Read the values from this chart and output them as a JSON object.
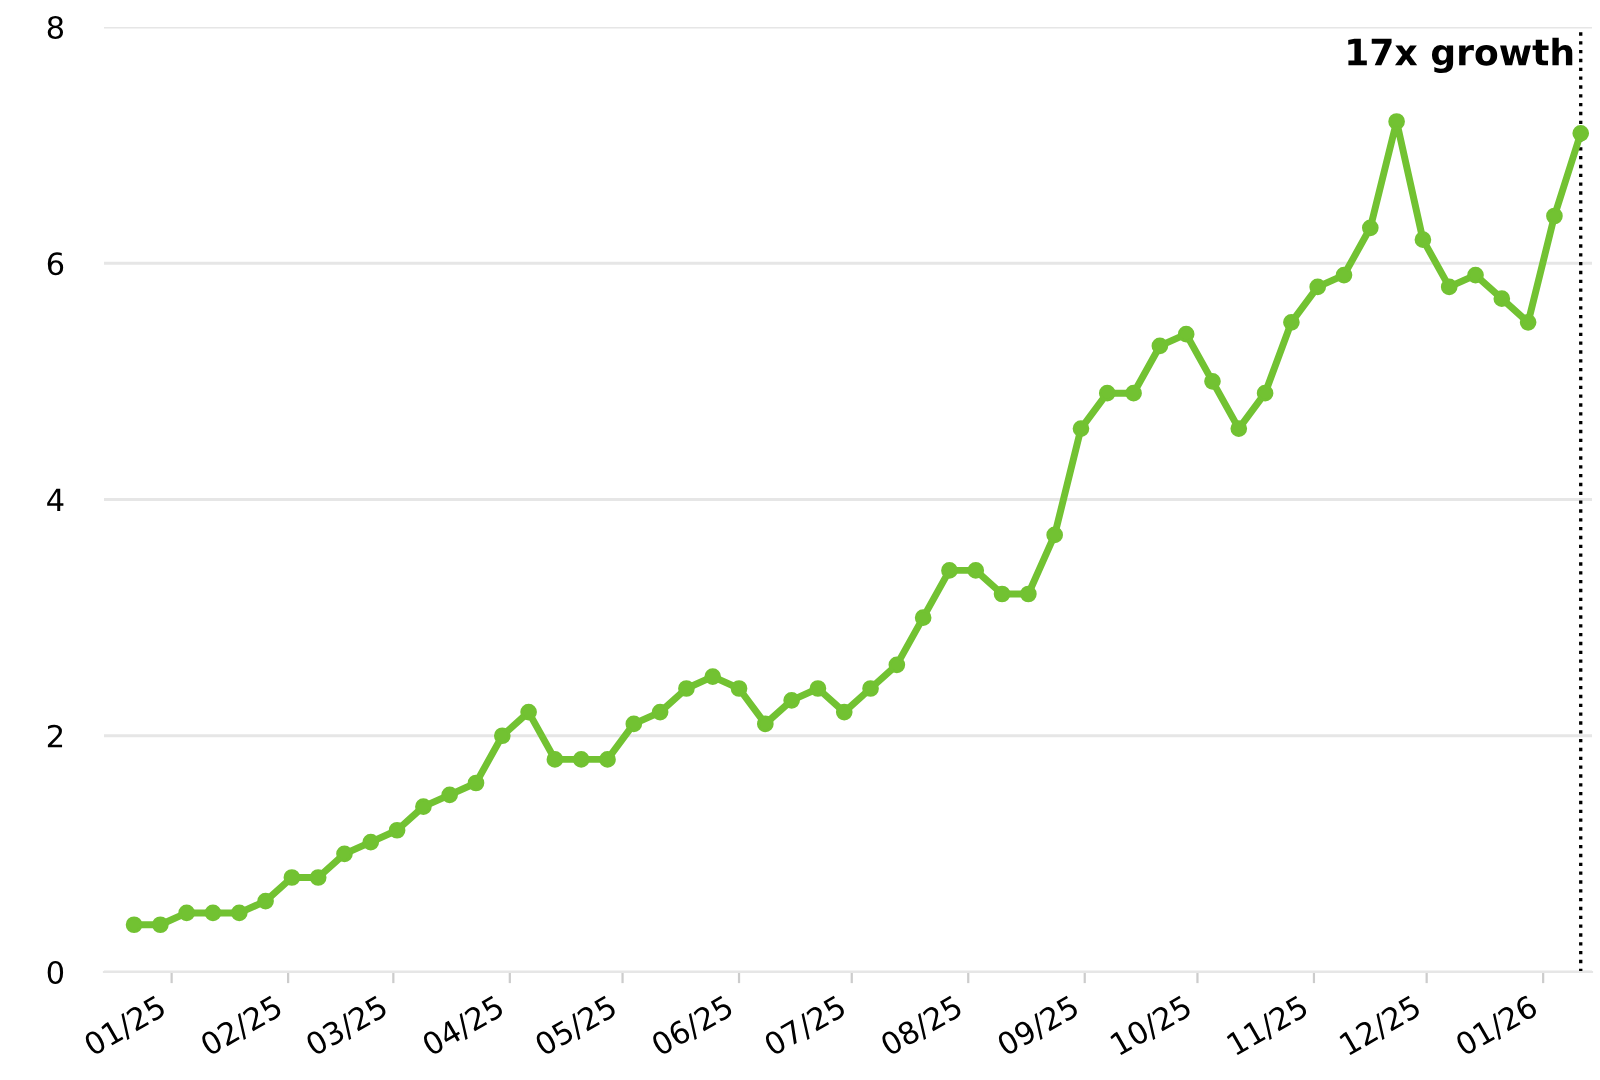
{
  "chart_data": {
    "type": "line",
    "x": [
      "2024-12-22",
      "2024-12-29",
      "2025-01-05",
      "2025-01-12",
      "2025-01-19",
      "2025-01-26",
      "2025-02-02",
      "2025-02-09",
      "2025-02-16",
      "2025-02-23",
      "2025-03-02",
      "2025-03-09",
      "2025-03-16",
      "2025-03-23",
      "2025-03-30",
      "2025-04-06",
      "2025-04-13",
      "2025-04-20",
      "2025-04-27",
      "2025-05-04",
      "2025-05-11",
      "2025-05-18",
      "2025-05-25",
      "2025-06-01",
      "2025-06-08",
      "2025-06-15",
      "2025-06-22",
      "2025-06-29",
      "2025-07-06",
      "2025-07-13",
      "2025-07-20",
      "2025-07-27",
      "2025-08-03",
      "2025-08-10",
      "2025-08-17",
      "2025-08-24",
      "2025-08-31",
      "2025-09-07",
      "2025-09-14",
      "2025-09-21",
      "2025-09-28",
      "2025-10-05",
      "2025-10-12",
      "2025-10-19",
      "2025-10-26",
      "2025-11-02",
      "2025-11-09",
      "2025-11-16",
      "2025-11-23",
      "2025-11-30",
      "2025-12-07",
      "2025-12-14",
      "2025-12-21",
      "2025-12-28",
      "2026-01-04",
      "2026-01-11"
    ],
    "series": [
      {
        "color": "#72c232",
        "values": [
          0.4,
          0.4,
          0.5,
          0.5,
          0.5,
          0.6,
          0.8,
          0.8,
          1.0,
          1.1,
          1.2,
          1.4,
          1.5,
          1.6,
          2.0,
          2.2,
          1.8,
          1.8,
          1.8,
          2.1,
          2.2,
          2.4,
          2.5,
          2.4,
          2.1,
          2.3,
          2.4,
          2.2,
          2.4,
          2.6,
          3.0,
          3.4,
          3.4,
          3.2,
          3.2,
          3.7,
          4.6,
          4.9,
          4.9,
          5.3,
          5.4,
          5.0,
          4.6,
          4.9,
          5.5,
          5.8,
          5.9,
          6.3,
          7.2,
          6.2,
          5.8,
          5.9,
          5.7,
          5.5,
          6.4,
          7.1
        ]
      }
    ],
    "xlim": [
      "2024-12-14",
      "2026-01-14"
    ],
    "xticks": [
      {
        "value": "2025-01-01",
        "label": "01/25"
      },
      {
        "value": "2025-02-01",
        "label": "02/25"
      },
      {
        "value": "2025-03-01",
        "label": "03/25"
      },
      {
        "value": "2025-04-01",
        "label": "04/25"
      },
      {
        "value": "2025-05-01",
        "label": "05/25"
      },
      {
        "value": "2025-06-01",
        "label": "06/25"
      },
      {
        "value": "2025-07-01",
        "label": "07/25"
      },
      {
        "value": "2025-08-01",
        "label": "08/25"
      },
      {
        "value": "2025-09-01",
        "label": "09/25"
      },
      {
        "value": "2025-10-01",
        "label": "10/25"
      },
      {
        "value": "2025-11-01",
        "label": "11/25"
      },
      {
        "value": "2025-12-01",
        "label": "12/25"
      },
      {
        "value": "2026-01-01",
        "label": "01/26"
      }
    ],
    "ylim": [
      0,
      8
    ],
    "yticks": [
      0,
      2,
      4,
      6,
      8
    ],
    "grid": "y",
    "marker": "circle",
    "line_style": "solid",
    "ref_lines": [
      {
        "axis": "x",
        "value": "2026-01-11",
        "label": "17x growth",
        "color": "#000000",
        "line_style": "dotted"
      }
    ]
  }
}
